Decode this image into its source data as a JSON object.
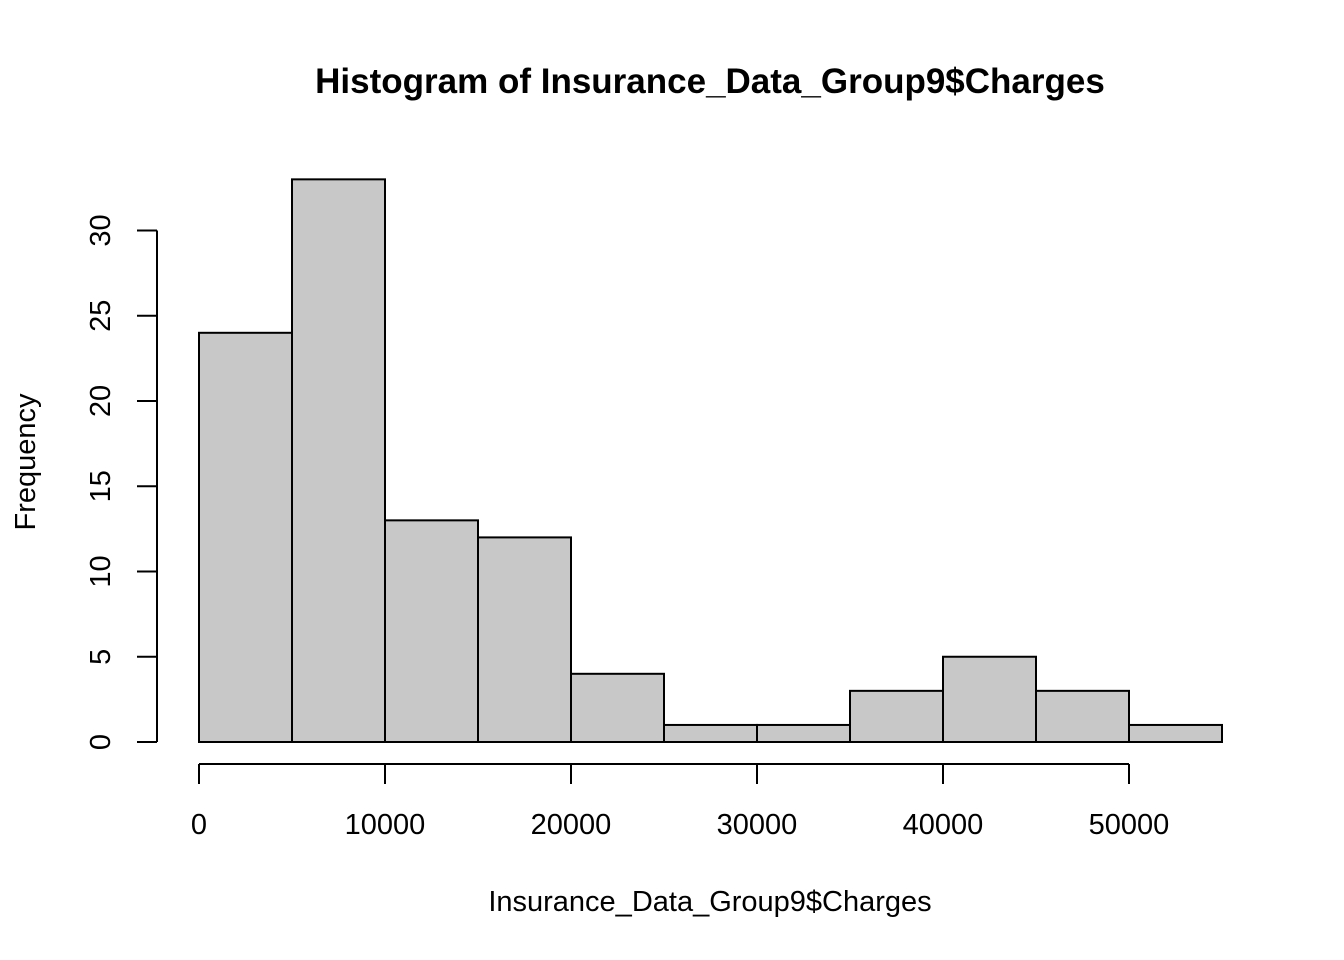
{
  "chart_data": {
    "type": "bar",
    "title": "Histogram of Insurance_Data_Group9$Charges",
    "xlabel": "Insurance_Data_Group9$Charges",
    "ylabel": "Frequency",
    "bins": [
      {
        "start": 0,
        "end": 5000,
        "count": 24
      },
      {
        "start": 5000,
        "end": 10000,
        "count": 33
      },
      {
        "start": 10000,
        "end": 15000,
        "count": 13
      },
      {
        "start": 15000,
        "end": 20000,
        "count": 12
      },
      {
        "start": 20000,
        "end": 25000,
        "count": 4
      },
      {
        "start": 25000,
        "end": 30000,
        "count": 1
      },
      {
        "start": 30000,
        "end": 35000,
        "count": 1
      },
      {
        "start": 35000,
        "end": 40000,
        "count": 3
      },
      {
        "start": 40000,
        "end": 45000,
        "count": 5
      },
      {
        "start": 45000,
        "end": 50000,
        "count": 3
      },
      {
        "start": 50000,
        "end": 55000,
        "count": 1
      }
    ],
    "xlim": [
      0,
      55000
    ],
    "ylim": [
      0,
      33
    ],
    "x_ticks": [
      0,
      10000,
      20000,
      30000,
      40000,
      50000
    ],
    "y_ticks": [
      0,
      5,
      10,
      15,
      20,
      25,
      30
    ],
    "bar_fill": "#c8c8c8",
    "grid": false,
    "legend": "none"
  }
}
